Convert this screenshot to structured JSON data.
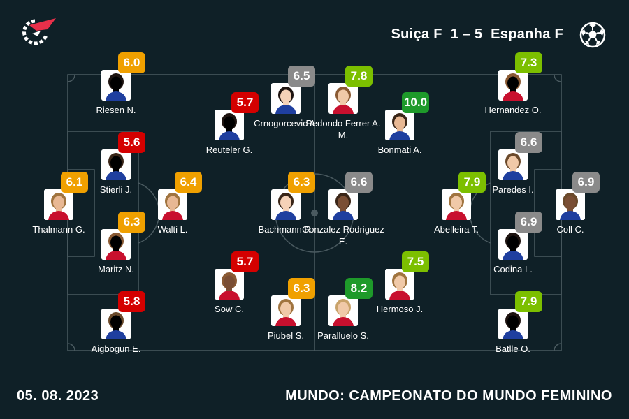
{
  "header": {
    "home_team": "Suiça F",
    "score": "1 – 5",
    "away_team": "Espanha F",
    "logo_icon": "flashscore-logo-icon",
    "sport_icon": "soccer-ball-icon"
  },
  "rating_colors": {
    "red": "#d40000",
    "orange": "#f0a000",
    "grey": "#8a8a8a",
    "light_green": "#7cbf00",
    "green": "#1e9a2a"
  },
  "players": [
    {
      "id": "riesen",
      "name": "Riesen N.",
      "rating": "6.0",
      "color": "orange"
    },
    {
      "id": "stierli",
      "name": "Stierli J.",
      "rating": "5.6",
      "color": "red"
    },
    {
      "id": "thalmann",
      "name": "Thalmann G.",
      "rating": "6.1",
      "color": "orange"
    },
    {
      "id": "walti",
      "name": "Walti L.",
      "rating": "6.4",
      "color": "orange"
    },
    {
      "id": "maritz",
      "name": "Maritz N.",
      "rating": "6.3",
      "color": "orange"
    },
    {
      "id": "aigbogun",
      "name": "Aigbogun E.",
      "rating": "5.8",
      "color": "red"
    },
    {
      "id": "reuteler",
      "name": "Reuteler G.",
      "rating": "5.7",
      "color": "red"
    },
    {
      "id": "crnogorcevic",
      "name": "Crnogorcevic A.",
      "rating": "6.5",
      "color": "grey"
    },
    {
      "id": "bachmann",
      "name": "Bachmann R.",
      "rating": "6.3",
      "color": "orange"
    },
    {
      "id": "sow",
      "name": "Sow C.",
      "rating": "5.7",
      "color": "red"
    },
    {
      "id": "piubel",
      "name": "Piubel S.",
      "rating": "6.3",
      "color": "orange"
    },
    {
      "id": "redondo",
      "name": "Redondo Ferrer A. M.",
      "rating": "7.8",
      "color": "light_green"
    },
    {
      "id": "bonmati",
      "name": "Bonmati A.",
      "rating": "10.0",
      "color": "green"
    },
    {
      "id": "gonzalez",
      "name": "Gonzalez Rodriguez E.",
      "rating": "6.6",
      "color": "grey"
    },
    {
      "id": "paralluelo",
      "name": "Paralluelo S.",
      "rating": "8.2",
      "color": "green"
    },
    {
      "id": "hermoso",
      "name": "Hermoso J.",
      "rating": "7.5",
      "color": "light_green"
    },
    {
      "id": "hernandez",
      "name": "Hernandez O.",
      "rating": "7.3",
      "color": "light_green"
    },
    {
      "id": "paredes",
      "name": "Paredes I.",
      "rating": "6.6",
      "color": "grey"
    },
    {
      "id": "abelleira",
      "name": "Abelleira T.",
      "rating": "7.9",
      "color": "light_green"
    },
    {
      "id": "coll",
      "name": "Coll C.",
      "rating": "6.9",
      "color": "grey"
    },
    {
      "id": "codina",
      "name": "Codina L.",
      "rating": "6.9",
      "color": "grey"
    },
    {
      "id": "batlle",
      "name": "Batlle O.",
      "rating": "7.9",
      "color": "light_green"
    }
  ],
  "footer": {
    "date": "05. 08. 2023",
    "competition": "MUNDO: CAMPEONATO DO MUNDO FEMININO"
  }
}
